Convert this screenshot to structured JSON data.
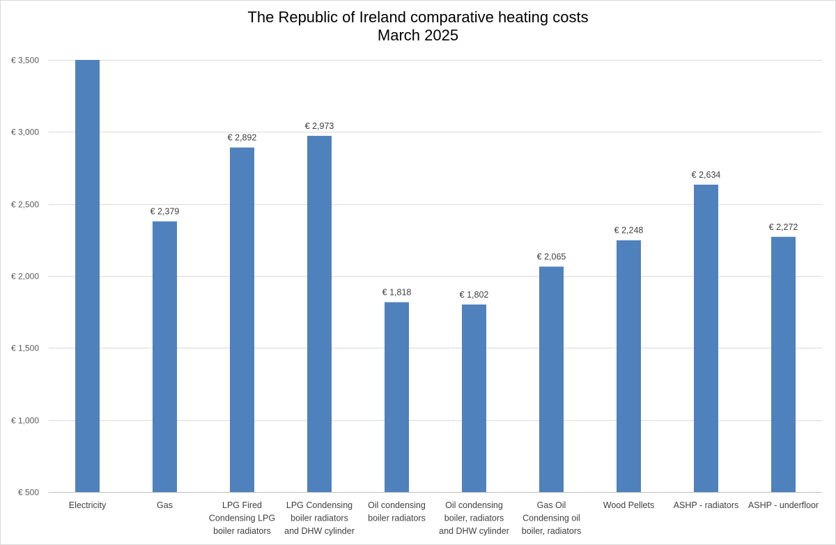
{
  "chart_data": {
    "type": "bar",
    "title": "The Republic of Ireland comparative heating costs",
    "subtitle": "March 2025",
    "xlabel": "",
    "ylabel": "",
    "ylim": [
      500,
      3500
    ],
    "yticks": [
      500,
      1000,
      1500,
      2000,
      2500,
      3000,
      3500
    ],
    "ytick_labels": [
      "€ 500",
      "€ 1,000",
      "€ 1,500",
      "€ 2,000",
      "€ 2,500",
      "€ 3,000",
      "€ 3,500"
    ],
    "grid": true,
    "legend": "none",
    "bar_color": "#4f81bd",
    "categories": [
      [
        "Electricity"
      ],
      [
        "Gas"
      ],
      [
        "LPG Fired",
        "Condensing LPG",
        "boiler radiators"
      ],
      [
        "LPG Condensing",
        "boiler radiators",
        "and DHW cylinder"
      ],
      [
        "Oil condensing",
        "boiler radiators"
      ],
      [
        "Oil condensing",
        "boiler, radiators",
        "and DHW cylinder"
      ],
      [
        "Gas Oil",
        "Condensing oil",
        "boiler, radiators"
      ],
      [
        "Wood Pellets"
      ],
      [
        "ASHP - radiators"
      ],
      [
        "ASHP -  underfloor"
      ]
    ],
    "values": [
      3500,
      2379,
      2892,
      2973,
      1818,
      1802,
      2065,
      2248,
      2634,
      2272
    ],
    "data_labels": [
      "",
      "€ 2,379",
      "€ 2,892",
      "€ 2,973",
      "€ 1,818",
      "€ 1,802",
      "€ 2,065",
      "€ 2,248",
      "€ 2,634",
      "€ 2,272"
    ]
  }
}
